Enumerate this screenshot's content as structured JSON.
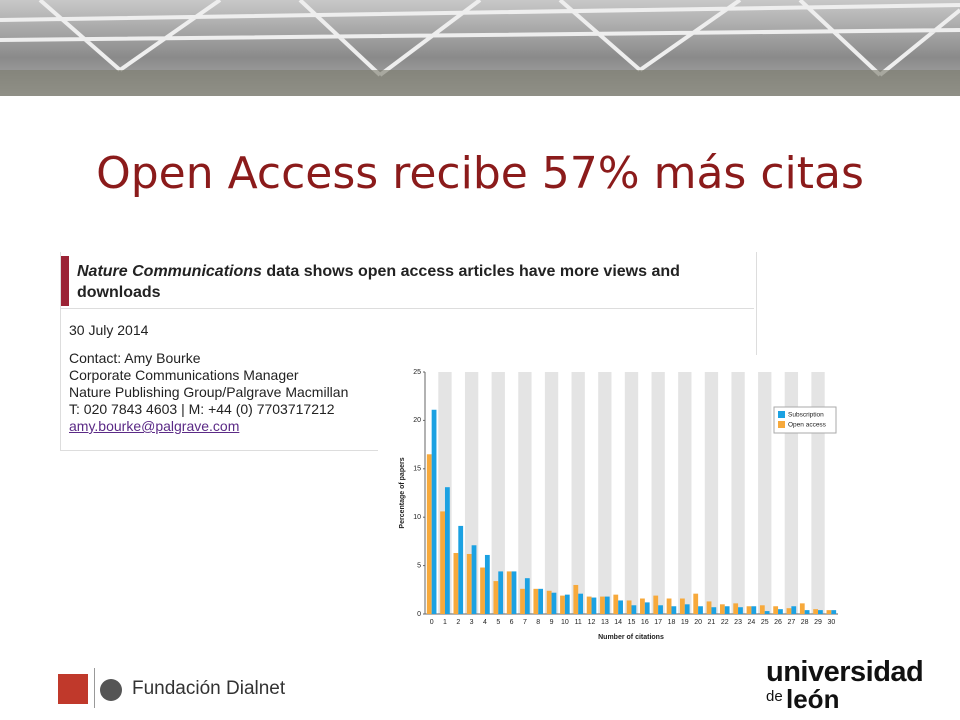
{
  "slide_title": "Open Access recibe 57% más citas",
  "press": {
    "heading_journal": "Nature Communications",
    "heading_rest": "data shows open access articles have more views and downloads",
    "date": "30 July 2014",
    "contact": [
      "Contact: Amy Bourke",
      "Corporate Communications Manager",
      "Nature Publishing Group/Palgrave Macmillan",
      "T: 020 7843 4603 | M: +44 (0) 7703717212"
    ],
    "email": "amy.bourke@palgrave.com"
  },
  "footer": {
    "left": "Fundación Dialnet",
    "right_main": "universidad",
    "right_small": "de",
    "right_city": "león"
  },
  "chart_data": {
    "type": "bar",
    "x_label": "Number of citations",
    "y_label": "Percentage of papers",
    "categories": [
      0,
      1,
      2,
      3,
      4,
      5,
      6,
      7,
      8,
      9,
      10,
      11,
      12,
      13,
      14,
      15,
      16,
      17,
      18,
      19,
      20,
      21,
      22,
      23,
      24,
      25,
      26,
      27,
      28,
      29,
      30
    ],
    "series": [
      {
        "name": "Subscription",
        "color": "#1ba1e2",
        "values": [
          21.1,
          13.1,
          9.1,
          7.1,
          6.1,
          4.4,
          4.4,
          3.7,
          2.6,
          2.2,
          2.0,
          2.1,
          1.7,
          1.8,
          1.4,
          0.9,
          1.2,
          0.9,
          0.8,
          1.0,
          0.8,
          0.7,
          0.8,
          0.7,
          0.8,
          0.3,
          0.5,
          0.8,
          0.4,
          0.4,
          0.4
        ]
      },
      {
        "name": "Open access",
        "color": "#f7a93b",
        "values": [
          16.5,
          10.6,
          6.3,
          6.2,
          4.8,
          3.4,
          4.4,
          2.6,
          2.6,
          2.4,
          1.9,
          3.0,
          1.8,
          1.8,
          2.0,
          1.4,
          1.6,
          1.9,
          1.6,
          1.6,
          2.1,
          1.3,
          1.0,
          1.1,
          0.8,
          0.9,
          0.8,
          0.6,
          1.1,
          0.5,
          0.4
        ]
      }
    ],
    "ylim": [
      0,
      25
    ],
    "yticks": [
      0,
      5,
      10,
      15,
      20,
      25
    ],
    "legend": "upper right"
  }
}
